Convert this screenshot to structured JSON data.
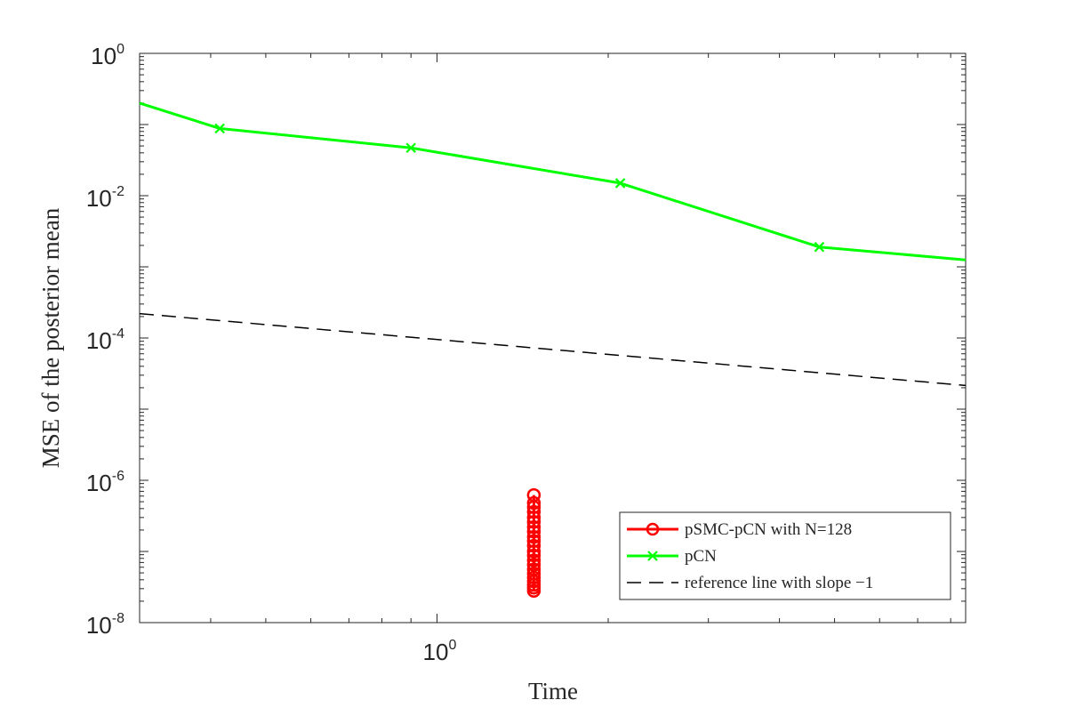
{
  "chart_data": {
    "type": "line",
    "title": "",
    "xlabel": "Time",
    "ylabel": "MSE of the posterior mean",
    "x_scale": "log",
    "y_scale": "log",
    "xlim": [
      0.3,
      8.5
    ],
    "ylim": [
      1e-08,
      1
    ],
    "grid": true,
    "minor_grid": true,
    "legend_position": "bottom-right",
    "x_tick_labels": [
      {
        "value": 1,
        "base": "10",
        "exp": "0"
      }
    ],
    "y_tick_labels": [
      {
        "value": 1,
        "base": "10",
        "exp": "0"
      },
      {
        "value": 0.01,
        "base": "10",
        "exp": "-2"
      },
      {
        "value": 0.0001,
        "base": "10",
        "exp": "-4"
      },
      {
        "value": 1e-06,
        "base": "10",
        "exp": "-6"
      },
      {
        "value": 1e-08,
        "base": "10",
        "exp": "-8"
      }
    ],
    "series": [
      {
        "name": "pSMC-pCN with N=128",
        "color": "#ff0000",
        "marker": "circle",
        "line": "solid",
        "x": [
          1.48,
          1.48,
          1.48,
          1.48,
          1.48,
          1.48,
          1.48,
          1.48,
          1.48,
          1.48,
          1.48,
          1.48,
          1.48,
          1.48,
          1.48,
          1.48,
          1.48,
          1.48,
          1.48,
          1.48,
          1.48,
          1.48
        ],
        "y": [
          6.2e-07,
          4.8e-07,
          4.2e-07,
          3.6e-07,
          3e-07,
          2.6e-07,
          2.2e-07,
          1.9e-07,
          1.6e-07,
          1.4e-07,
          1.2e-07,
          1e-07,
          8.8e-08,
          7.5e-08,
          6.5e-08,
          5.6e-08,
          4.9e-08,
          4.3e-08,
          3.8e-08,
          3.4e-08,
          3.1e-08,
          2.8e-08
        ]
      },
      {
        "name": "pCN",
        "color": "#00ff00",
        "marker": "x",
        "line": "solid",
        "x": [
          0.3,
          0.415,
          0.9,
          2.1,
          4.7,
          8.5
        ],
        "y": [
          0.2,
          0.088,
          0.047,
          0.015,
          0.0019,
          0.00125
        ]
      },
      {
        "name": "reference line with slope −1",
        "color": "#000000",
        "marker": "none",
        "line": "dashed",
        "x": [
          0.3,
          8.5
        ],
        "y": [
          0.00022,
          2.15e-05
        ]
      }
    ]
  }
}
